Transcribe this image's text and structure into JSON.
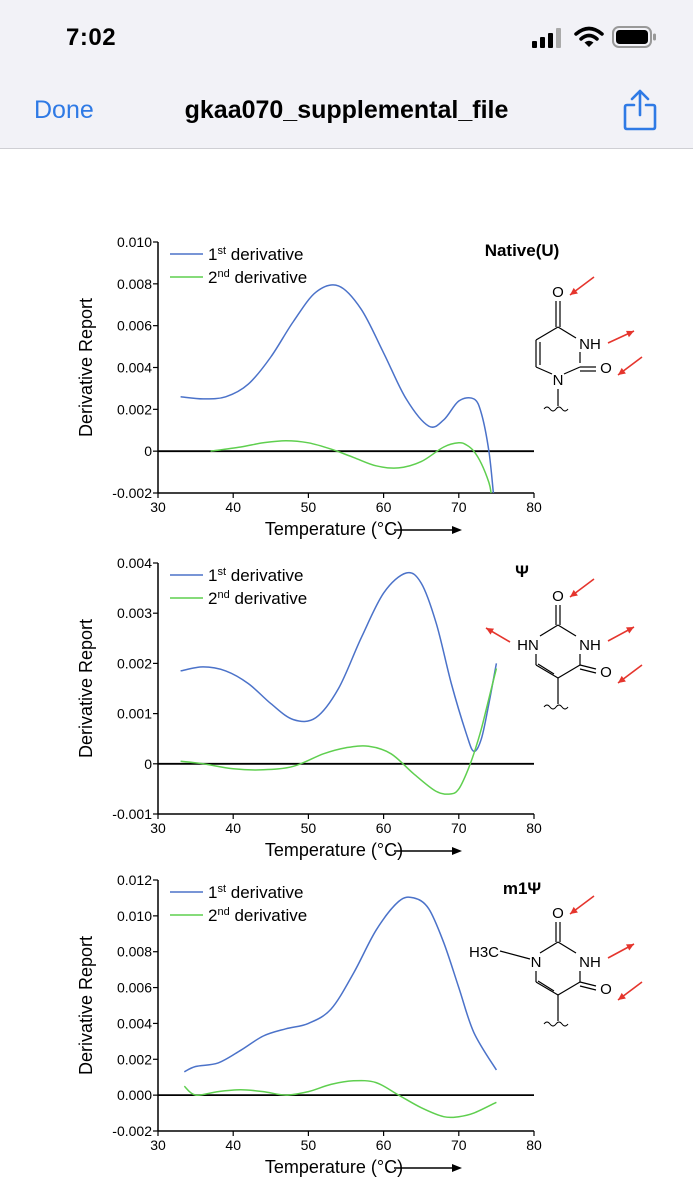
{
  "status": {
    "time": "7:02"
  },
  "nav": {
    "done_label": "Done",
    "title": "gkaa070_supplemental_file"
  },
  "colors": {
    "accent": "#2f7ae5",
    "first_derivative": "#4b72c9",
    "second_derivative": "#5fcf4f",
    "arrow": "#e5352d"
  },
  "chart_data": [
    {
      "type": "line",
      "title": "Native(U)",
      "xlabel": "Temperature (°C)",
      "ylabel": "Derivative Report",
      "xlim": [
        30,
        80
      ],
      "ylim": [
        -0.002,
        0.01
      ],
      "x_ticks": [
        "30",
        "40",
        "50",
        "60",
        "70",
        "80"
      ],
      "y_ticks": [
        "-0.002",
        "0",
        "0.002",
        "0.004",
        "0.006",
        "0.008",
        "0.010"
      ],
      "y_tick_values": [
        -0.002,
        0,
        0.002,
        0.004,
        0.006,
        0.008,
        0.01
      ],
      "legend": [
        {
          "name": "1st derivative",
          "base": "1",
          "sup": "st",
          "rest": " derivative"
        },
        {
          "name": "2nd derivative",
          "base": "2",
          "sup": "nd",
          "rest": " derivative"
        }
      ],
      "series": [
        {
          "name": "1st derivative",
          "x": [
            33,
            36,
            39,
            42,
            45,
            48,
            51,
            54,
            57,
            60,
            63,
            66,
            68,
            70,
            72,
            73,
            74,
            74.6
          ],
          "values": [
            0.0026,
            0.0025,
            0.0026,
            0.0032,
            0.0045,
            0.0062,
            0.0076,
            0.0079,
            0.0068,
            0.0047,
            0.0025,
            0.0012,
            0.0015,
            0.0024,
            0.0025,
            0.0018,
            0.0,
            -0.002
          ]
        },
        {
          "name": "2nd derivative",
          "x": [
            37,
            41,
            44,
            47,
            50,
            53,
            56,
            59,
            62,
            65,
            68,
            70,
            71,
            72,
            73,
            74,
            74.3
          ],
          "values": [
            0.0,
            0.0002,
            0.0004,
            0.0005,
            0.0004,
            0.0001,
            -0.0003,
            -0.0007,
            -0.0008,
            -0.0005,
            0.0002,
            0.0004,
            0.0003,
            0.0,
            -0.0006,
            -0.0015,
            -0.002
          ]
        }
      ],
      "molecule": {
        "atoms": [
          "O",
          "NH",
          "N",
          "O"
        ]
      }
    },
    {
      "type": "line",
      "title": "Ψ",
      "xlabel": "Temperature (°C)",
      "ylabel": "Derivative Report",
      "xlim": [
        30,
        80
      ],
      "ylim": [
        -0.001,
        0.004
      ],
      "x_ticks": [
        "30",
        "40",
        "50",
        "60",
        "70",
        "80"
      ],
      "y_ticks": [
        "-0.001",
        "0",
        "0.001",
        "0.002",
        "0.003",
        "0.004"
      ],
      "y_tick_values": [
        -0.001,
        0,
        0.001,
        0.002,
        0.003,
        0.004
      ],
      "legend": [
        {
          "name": "1st derivative",
          "base": "1",
          "sup": "st",
          "rest": " derivative"
        },
        {
          "name": "2nd derivative",
          "base": "2",
          "sup": "nd",
          "rest": " derivative"
        }
      ],
      "series": [
        {
          "name": "1st derivative",
          "x": [
            33,
            36,
            39,
            42,
            45,
            48,
            51,
            54,
            57,
            60,
            63,
            65,
            67,
            69,
            71,
            72,
            73,
            74,
            75
          ],
          "values": [
            0.00185,
            0.00193,
            0.00185,
            0.0016,
            0.0012,
            0.00088,
            0.00092,
            0.0015,
            0.0025,
            0.0034,
            0.0038,
            0.0036,
            0.0028,
            0.0016,
            0.0006,
            0.00025,
            0.0005,
            0.0012,
            0.002
          ]
        },
        {
          "name": "2nd derivative",
          "x": [
            33,
            36,
            40,
            44,
            48,
            52,
            55,
            58,
            61,
            64,
            67,
            69,
            70,
            71,
            72,
            73,
            74,
            75
          ],
          "values": [
            5e-05,
            0.0,
            -0.0001,
            -0.00012,
            -5e-05,
            0.0002,
            0.00032,
            0.00035,
            0.0002,
            -0.0002,
            -0.00055,
            -0.0006,
            -0.0005,
            -0.0002,
            0.0002,
            0.0007,
            0.0013,
            0.0019
          ]
        }
      ],
      "molecule": {
        "atoms": [
          "O",
          "HN",
          "NH",
          "O"
        ]
      }
    },
    {
      "type": "line",
      "title": "m1Ψ",
      "xlabel": "Temperature (°C)",
      "ylabel": "Derivative Report",
      "xlim": [
        30,
        80
      ],
      "ylim": [
        -0.002,
        0.012
      ],
      "x_ticks": [
        "30",
        "40",
        "50",
        "60",
        "70",
        "80"
      ],
      "y_ticks": [
        "-0.002",
        "0.000",
        "0.002",
        "0.004",
        "0.006",
        "0.008",
        "0.010",
        "0.012"
      ],
      "y_tick_values": [
        -0.002,
        0,
        0.002,
        0.004,
        0.006,
        0.008,
        0.01,
        0.012
      ],
      "legend": [
        {
          "name": "1st derivative",
          "base": "1",
          "sup": "st",
          "rest": " derivative"
        },
        {
          "name": "2nd derivative",
          "base": "2",
          "sup": "nd",
          "rest": " derivative"
        }
      ],
      "series": [
        {
          "name": "1st derivative",
          "x": [
            33.5,
            35,
            38,
            41,
            44,
            47,
            50,
            53,
            56,
            59,
            62,
            64,
            66,
            68,
            70,
            72,
            75
          ],
          "values": [
            0.0013,
            0.0016,
            0.0018,
            0.0025,
            0.0033,
            0.0037,
            0.004,
            0.0048,
            0.0068,
            0.0092,
            0.0108,
            0.011,
            0.0104,
            0.0085,
            0.006,
            0.0035,
            0.0014
          ]
        },
        {
          "name": "2nd derivative",
          "x": [
            33.5,
            35,
            38,
            41,
            44,
            47,
            50,
            53,
            56,
            59,
            62,
            65,
            68,
            70,
            72,
            75
          ],
          "values": [
            0.0005,
            0.0,
            0.0002,
            0.0003,
            0.0002,
            0.0,
            0.0002,
            0.0006,
            0.0008,
            0.0007,
            0.0,
            -0.0007,
            -0.0012,
            -0.0012,
            -0.001,
            -0.0004
          ]
        }
      ],
      "molecule": {
        "atoms": [
          "H3C",
          "N",
          "O",
          "NH",
          "O"
        ]
      }
    }
  ]
}
